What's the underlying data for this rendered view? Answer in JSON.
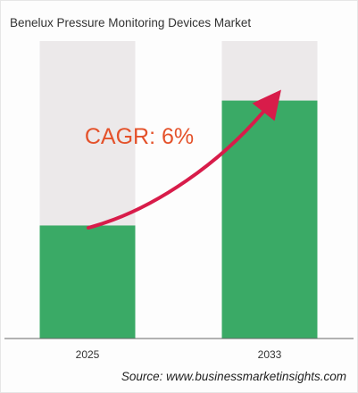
{
  "chart_data": {
    "type": "bar",
    "title": "Benelux Pressure Monitoring Devices Market",
    "categories": [
      "2025",
      "2033"
    ],
    "values": [
      38,
      80
    ],
    "ylim": [
      0,
      100
    ],
    "xlabel": "",
    "ylabel": "",
    "grid": false,
    "annotation": "CAGR: 6%",
    "source": "Source: www.businessmarketinsights.com",
    "colors": {
      "bar": "#3aaa66",
      "track": "#ece9ea",
      "arrow": "#d81c4a",
      "annotation": "#e4522b"
    }
  }
}
